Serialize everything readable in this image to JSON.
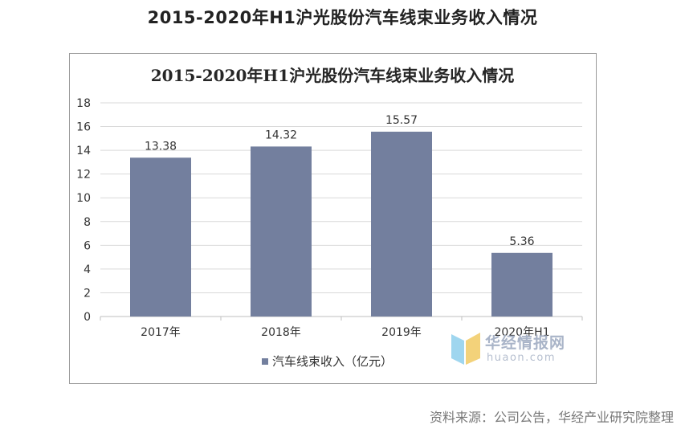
{
  "page_title": "2015-2020年H1沪光股份汽车线束业务收入情况",
  "source_note": "资料来源：公司公告，华经产业研究院整理",
  "watermark": {
    "cn": "华经情报网",
    "en": "huaon.com"
  },
  "colors": {
    "bar": "#737f9e",
    "grid": "#d9d9d9",
    "axis": "#bfbfbf",
    "text": "#333333"
  },
  "chart_data": {
    "type": "bar",
    "title": "2015-2020年H1沪光股份汽车线束业务收入情况",
    "categories": [
      "2017年",
      "2018年",
      "2019年",
      "2020年H1"
    ],
    "series": [
      {
        "name": "汽车线束收入（亿元）",
        "values": [
          13.38,
          14.32,
          15.57,
          5.36
        ]
      }
    ],
    "data_labels": [
      "13.38",
      "14.32",
      "15.57",
      "5.36"
    ],
    "ylim": [
      0,
      18
    ],
    "yticks": [
      0,
      2,
      4,
      6,
      8,
      10,
      12,
      14,
      16,
      18
    ],
    "grid": true,
    "legend_position": "bottom"
  }
}
